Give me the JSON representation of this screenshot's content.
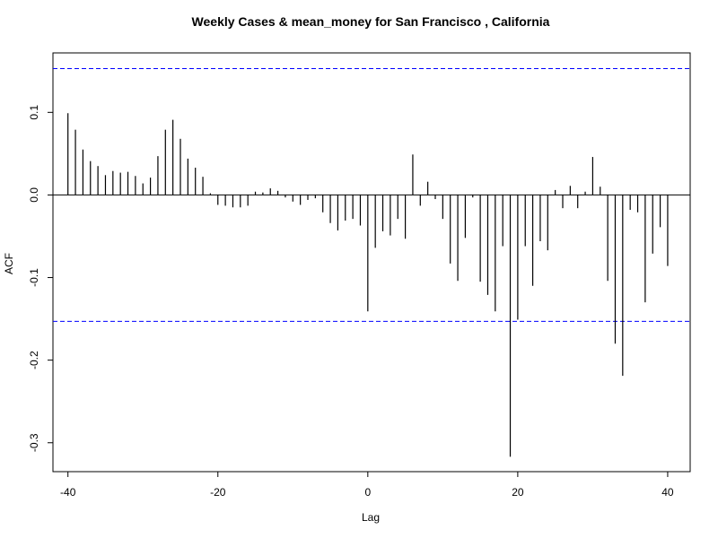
{
  "chart_data": {
    "type": "bar",
    "title": "Weekly Cases & mean_money for San Francisco , California",
    "xlabel": "Lag",
    "ylabel": "ACF",
    "xlim": [
      -42,
      43
    ],
    "ylim": [
      -0.335,
      0.172
    ],
    "xticks": [
      -40,
      -20,
      0,
      20,
      40
    ],
    "yticks": [
      0.1,
      0.0,
      -0.1,
      -0.2,
      -0.3
    ],
    "xtick_labels": [
      "-40",
      "-20",
      "0",
      "20",
      "40"
    ],
    "ytick_labels": [
      "0.1",
      "0.0",
      "-0.1",
      "-0.2",
      "-0.3"
    ],
    "confidence_band": [
      -0.153,
      0.153
    ],
    "confidence_color": "#0000ff",
    "bar_color": "#000000",
    "grid": false,
    "x": [
      -40,
      -39,
      -38,
      -37,
      -36,
      -35,
      -34,
      -33,
      -32,
      -31,
      -30,
      -29,
      -28,
      -27,
      -26,
      -25,
      -24,
      -23,
      -22,
      -21,
      -20,
      -19,
      -18,
      -17,
      -16,
      -15,
      -14,
      -13,
      -12,
      -11,
      -10,
      -9,
      -8,
      -7,
      -6,
      -5,
      -4,
      -3,
      -2,
      -1,
      0,
      1,
      2,
      3,
      4,
      5,
      6,
      7,
      8,
      9,
      10,
      11,
      12,
      13,
      14,
      15,
      16,
      17,
      18,
      19,
      20,
      21,
      22,
      23,
      24,
      25,
      26,
      27,
      28,
      29,
      30,
      31,
      32,
      33,
      34,
      35,
      36,
      37,
      38,
      39,
      40
    ],
    "values": [
      0.099,
      0.079,
      0.055,
      0.041,
      0.035,
      0.024,
      0.029,
      0.027,
      0.028,
      0.023,
      0.014,
      0.021,
      0.047,
      0.079,
      0.091,
      0.068,
      0.044,
      0.033,
      0.022,
      0.002,
      -0.012,
      -0.013,
      -0.015,
      -0.015,
      -0.013,
      0.004,
      0.003,
      0.008,
      0.005,
      -0.003,
      -0.008,
      -0.012,
      -0.006,
      -0.004,
      -0.021,
      -0.034,
      -0.043,
      -0.031,
      -0.029,
      -0.037,
      -0.141,
      -0.064,
      -0.044,
      -0.049,
      -0.029,
      -0.053,
      0.049,
      -0.013,
      0.016,
      -0.005,
      -0.029,
      -0.083,
      -0.104,
      -0.052,
      -0.003,
      -0.105,
      -0.121,
      -0.141,
      -0.062,
      -0.317,
      -0.151,
      -0.062,
      -0.11,
      -0.056,
      -0.067,
      0.006,
      -0.016,
      0.011,
      -0.016,
      0.004,
      0.046,
      0.01,
      -0.104,
      -0.18,
      -0.219,
      -0.018,
      -0.021,
      -0.13,
      -0.071,
      -0.039,
      -0.086
    ]
  }
}
